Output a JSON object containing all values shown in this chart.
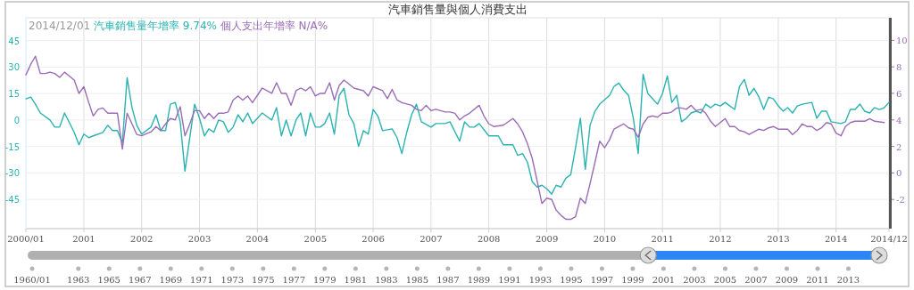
{
  "chart_data": [
    {
      "type": "line",
      "title": "汽車銷售量與個人消費支出",
      "legend_title": "2014/12/01",
      "legend": "top left",
      "grid": true,
      "marker": "none",
      "line_style": "solid",
      "xlim": [
        "2000-01",
        "2014-12"
      ],
      "xticks": [
        {
          "value": "2000-01",
          "label": "2000/01"
        },
        {
          "value": "2001-01",
          "label": "2001"
        },
        {
          "value": "2002-01",
          "label": "2002"
        },
        {
          "value": "2003-01",
          "label": "2003"
        },
        {
          "value": "2004-01",
          "label": "2004"
        },
        {
          "value": "2005-01",
          "label": "2005"
        },
        {
          "value": "2006-01",
          "label": "2006"
        },
        {
          "value": "2007-01",
          "label": "2007"
        },
        {
          "value": "2008-01",
          "label": "2008"
        },
        {
          "value": "2009-01",
          "label": "2009"
        },
        {
          "value": "2010-01",
          "label": "2010"
        },
        {
          "value": "2011-01",
          "label": "2011"
        },
        {
          "value": "2012-01",
          "label": "2012"
        },
        {
          "value": "2013-01",
          "label": "2013"
        },
        {
          "value": "2014-01",
          "label": "2014"
        },
        {
          "value": "2014-12",
          "label": "2014/12"
        }
      ],
      "ylim": [
        -61.6,
        58
      ],
      "yticks": [
        -45,
        -30,
        -15,
        0,
        15,
        30,
        45
      ],
      "y2lim": [
        -4.2,
        11.7
      ],
      "y2ticks": [
        -2,
        0,
        2,
        4,
        6,
        8,
        10
      ],
      "x2lim": [
        1960,
        2015
      ],
      "x2ticks": [
        {
          "value": 1960,
          "label": "1960/01"
        },
        1963,
        1965,
        1967,
        1969,
        1971,
        1973,
        1975,
        1977,
        1979,
        1981,
        1983,
        1985,
        1987,
        1989,
        1991,
        1993,
        1995,
        1997,
        1999,
        2001,
        2003,
        2005,
        2007,
        2009,
        2011,
        2013
      ],
      "series": [
        {
          "name": "汽車銷售量年增率 9.74%",
          "color": "#2ab3b1",
          "x": [
            "2000-01",
            "2000-02",
            "2000-03",
            "2000-04",
            "2000-06",
            "2000-07",
            "2000-08",
            "2000-09",
            "2000-11",
            "2000-12",
            "2001-01",
            "2001-02",
            "2001-03",
            "2001-05",
            "2001-06",
            "2001-07",
            "2001-08",
            "2001-09",
            "2001-10",
            "2001-11",
            "2001-12",
            "2002-01",
            "2002-03",
            "2002-04",
            "2002-05",
            "2002-06",
            "2002-07",
            "2002-08",
            "2002-09",
            "2002-10",
            "2002-12",
            "2003-01",
            "2003-02",
            "2003-03",
            "2003-04",
            "2003-05",
            "2003-06",
            "2003-07",
            "2003-08",
            "2003-09",
            "2003-10",
            "2003-11",
            "2003-12",
            "2004-02",
            "2004-03",
            "2004-04",
            "2004-05",
            "2004-06",
            "2004-07",
            "2004-08",
            "2004-09",
            "2004-10",
            "2004-11",
            "2004-12",
            "2005-01",
            "2005-02",
            "2005-03",
            "2005-04",
            "2005-05",
            "2005-06",
            "2005-07",
            "2005-08",
            "2005-09",
            "2005-10",
            "2005-11",
            "2005-12",
            "2006-01",
            "2006-02",
            "2006-03",
            "2006-05",
            "2006-06",
            "2006-07",
            "2006-08",
            "2006-09",
            "2006-10",
            "2006-11",
            "2007-01",
            "2007-02",
            "2007-04",
            "2007-05",
            "2007-07",
            "2007-08",
            "2007-09",
            "2007-10",
            "2007-11",
            "2008-01",
            "2008-03",
            "2008-04",
            "2008-06",
            "2008-07",
            "2008-08",
            "2008-09",
            "2008-10",
            "2008-11",
            "2008-12",
            "2009-01",
            "2009-02",
            "2009-03",
            "2009-04",
            "2009-05",
            "2009-06",
            "2009-07",
            "2009-08",
            "2009-09",
            "2009-10",
            "2009-11",
            "2009-12",
            "2010-02",
            "2010-03",
            "2010-04",
            "2010-05",
            "2010-06",
            "2010-07",
            "2010-08",
            "2010-09",
            "2010-10",
            "2010-11",
            "2010-12",
            "2011-01",
            "2011-02",
            "2011-03",
            "2011-04",
            "2011-05",
            "2011-06",
            "2011-07",
            "2011-08",
            "2011-09",
            "2011-10",
            "2011-11",
            "2011-12",
            "2012-01",
            "2012-02",
            "2012-03",
            "2012-04",
            "2012-05",
            "2012-06",
            "2012-07",
            "2012-08",
            "2012-09",
            "2012-10",
            "2012-11",
            "2012-12",
            "2013-01",
            "2013-02",
            "2013-03",
            "2013-04",
            "2013-05",
            "2013-06",
            "2013-08",
            "2013-09",
            "2013-10",
            "2013-11",
            "2013-12",
            "2014-02",
            "2014-03",
            "2014-04",
            "2014-05",
            "2014-06",
            "2014-07",
            "2014-08",
            "2014-09",
            "2014-10",
            "2014-11",
            "2014-12"
          ],
          "values": [
            12,
            13,
            9,
            4,
            0,
            -4,
            -4,
            4,
            -7,
            -14,
            -8,
            -10,
            -9,
            -7,
            -3,
            -6,
            -6,
            -13,
            24,
            7,
            -3,
            -8,
            -4,
            3,
            -6,
            -6,
            9,
            10,
            -1,
            -29,
            9,
            1,
            -9,
            -5,
            -7,
            0,
            -1,
            -7,
            -4,
            3,
            -1,
            4,
            -2,
            4,
            2,
            0,
            7,
            -9,
            0,
            -9,
            0,
            4,
            -9,
            4,
            -4,
            -4,
            -2,
            4,
            -8,
            14,
            18,
            3,
            -2,
            -15,
            -6,
            -8,
            6,
            2,
            -6,
            -5,
            -10,
            -19,
            -7,
            3,
            9,
            -1,
            -4,
            -2,
            -2,
            -1,
            -12,
            -1,
            -4,
            -4,
            -2,
            -9,
            -9,
            -14,
            -14,
            -20,
            -19,
            -24,
            -35,
            -38,
            -37,
            -39,
            -42,
            -37,
            -38,
            -33,
            -31,
            -16,
            1,
            -28,
            -3,
            5,
            9,
            14,
            19,
            21,
            17,
            14,
            1,
            -19,
            26,
            15,
            12,
            9,
            15,
            25,
            10,
            14,
            -1,
            1,
            4,
            5,
            4,
            9,
            7,
            9,
            8,
            10,
            8,
            6,
            19,
            23,
            14,
            18,
            13,
            6,
            13,
            12,
            8,
            5,
            7,
            4,
            8,
            9,
            10,
            1,
            5,
            5,
            -1,
            -2,
            -1,
            6,
            6,
            9,
            5,
            4,
            7,
            6,
            7,
            10
          ]
        },
        {
          "name": "個人支出年增率 N/A%",
          "color": "#9b6cb6",
          "axis": "y2",
          "x": [
            "2000-01",
            "2000-02",
            "2000-03",
            "2000-04",
            "2000-05",
            "2000-06",
            "2000-07",
            "2000-08",
            "2000-09",
            "2000-10",
            "2000-11",
            "2000-12",
            "2001-01",
            "2001-02",
            "2001-03",
            "2001-04",
            "2001-05",
            "2001-06",
            "2001-07",
            "2001-08",
            "2001-09",
            "2001-10",
            "2001-11",
            "2001-12",
            "2002-01",
            "2002-03",
            "2002-04",
            "2002-05",
            "2002-06",
            "2002-07",
            "2002-08",
            "2002-09",
            "2002-10",
            "2002-11",
            "2002-12",
            "2003-01",
            "2003-02",
            "2003-03",
            "2003-04",
            "2003-05",
            "2003-06",
            "2003-07",
            "2003-08",
            "2003-09",
            "2003-10",
            "2003-11",
            "2003-12",
            "2004-02",
            "2004-03",
            "2004-04",
            "2004-05",
            "2004-06",
            "2004-07",
            "2004-08",
            "2004-09",
            "2004-10",
            "2004-11",
            "2004-12",
            "2005-01",
            "2005-02",
            "2005-03",
            "2005-04",
            "2005-05",
            "2005-06",
            "2005-07",
            "2005-08",
            "2005-09",
            "2005-11",
            "2005-12",
            "2006-01",
            "2006-03",
            "2006-04",
            "2006-05",
            "2006-06",
            "2006-07",
            "2006-09",
            "2006-10",
            "2006-11",
            "2006-12",
            "2007-01",
            "2007-02",
            "2007-04",
            "2007-05",
            "2007-06",
            "2007-07",
            "2007-08",
            "2007-09",
            "2007-11",
            "2007-12",
            "2008-01",
            "2008-02",
            "2008-04",
            "2008-06",
            "2008-07",
            "2008-08",
            "2008-09",
            "2008-10",
            "2008-11",
            "2008-12",
            "2009-01",
            "2009-02",
            "2009-03",
            "2009-04",
            "2009-05",
            "2009-06",
            "2009-07",
            "2009-08",
            "2009-09",
            "2009-10",
            "2009-11",
            "2009-12",
            "2010-01",
            "2010-02",
            "2010-03",
            "2010-04",
            "2010-05",
            "2010-06",
            "2010-07",
            "2010-08",
            "2010-09",
            "2010-10",
            "2010-11",
            "2010-12",
            "2011-01",
            "2011-02",
            "2011-03",
            "2011-04",
            "2011-05",
            "2011-06",
            "2011-07",
            "2011-08",
            "2011-09",
            "2011-10",
            "2011-11",
            "2011-12",
            "2012-02",
            "2012-03",
            "2012-04",
            "2012-05",
            "2012-06",
            "2012-07",
            "2012-08",
            "2012-09",
            "2012-10",
            "2012-11",
            "2012-12",
            "2013-01",
            "2013-03",
            "2013-04",
            "2013-05",
            "2013-06",
            "2013-07",
            "2013-08",
            "2013-09",
            "2013-10",
            "2013-11",
            "2013-12",
            "2014-01",
            "2014-02",
            "2014-03",
            "2014-04",
            "2014-05",
            "2014-07",
            "2014-08",
            "2014-09",
            "2014-11"
          ],
          "values": [
            7.4,
            8.2,
            8.8,
            7.5,
            7.5,
            7.6,
            7.5,
            7.2,
            7.6,
            7.3,
            7.0,
            6.0,
            6.5,
            5.3,
            4.3,
            4.8,
            4.9,
            4.5,
            4.5,
            4.5,
            1.8,
            4.5,
            3.7,
            2.9,
            2.8,
            3.1,
            3.5,
            3.2,
            3.7,
            4.1,
            4.0,
            5.0,
            2.8,
            3.7,
            4.7,
            4.7,
            4.1,
            4.5,
            4.1,
            4.5,
            4.5,
            4.6,
            5.5,
            5.8,
            5.5,
            5.8,
            5.3,
            6.4,
            6.2,
            6.0,
            6.8,
            6.0,
            6.0,
            5.1,
            6.2,
            6.4,
            6.2,
            6.5,
            5.8,
            6.0,
            6.0,
            6.8,
            5.5,
            6.6,
            7.0,
            6.7,
            6.4,
            6.2,
            5.8,
            6.5,
            6.2,
            5.6,
            6.3,
            5.5,
            5.3,
            5.1,
            4.8,
            4.7,
            5.1,
            4.7,
            4.8,
            4.6,
            4.6,
            4.5,
            4.0,
            4.3,
            4.5,
            5.1,
            4.3,
            3.7,
            3.5,
            3.6,
            4.1,
            3.7,
            3.1,
            2.2,
            1.1,
            -0.6,
            -2.3,
            -1.9,
            -2.0,
            -2.8,
            -3.2,
            -3.5,
            -3.5,
            -3.3,
            -1.9,
            -2.3,
            -0.8,
            0.8,
            2.4,
            1.9,
            2.5,
            3.3,
            3.5,
            3.7,
            3.4,
            3.3,
            2.7,
            3.7,
            4.2,
            4.3,
            4.2,
            4.5,
            4.5,
            4.6,
            4.9,
            4.9,
            4.8,
            5.1,
            4.7,
            4.8,
            4.5,
            3.9,
            3.5,
            4.1,
            3.5,
            3.5,
            3.2,
            3.1,
            2.9,
            3.1,
            3.3,
            3.2,
            3.4,
            3.5,
            3.3,
            3.3,
            2.9,
            3.2,
            3.7,
            3.5,
            3.5,
            3.2,
            3.4,
            3.8,
            3.7,
            3.0,
            2.8,
            3.5,
            3.8,
            3.9,
            3.9,
            4.1,
            3.9,
            3.8
          ]
        }
      ]
    }
  ]
}
